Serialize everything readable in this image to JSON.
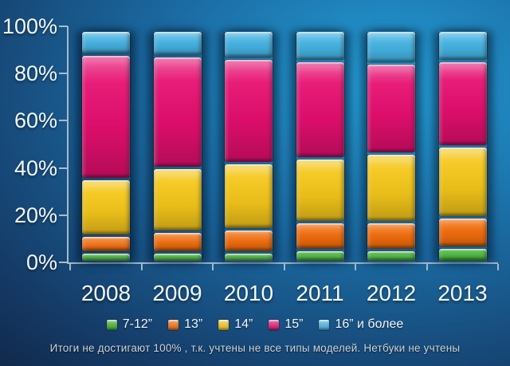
{
  "chart_data": {
    "type": "bar",
    "stacked": true,
    "title": "",
    "xlabel": "",
    "ylabel": "",
    "ylim": [
      0,
      100
    ],
    "grid": false,
    "legend_position": "bottom",
    "categories": [
      "2008",
      "2009",
      "2010",
      "2011",
      "2012",
      "2013"
    ],
    "y_ticks": [
      {
        "value": 0,
        "label": "0%"
      },
      {
        "value": 20,
        "label": "20%"
      },
      {
        "value": 40,
        "label": "40%"
      },
      {
        "value": 60,
        "label": "60%"
      },
      {
        "value": 80,
        "label": "80%"
      },
      {
        "value": 100,
        "label": "100%"
      }
    ],
    "series": [
      {
        "name": "7-12”",
        "color": "#3cb02c",
        "values": [
          4,
          4,
          4,
          5,
          5,
          6
        ]
      },
      {
        "name": "13”",
        "color": "#f26d0c",
        "values": [
          7,
          9,
          10,
          12,
          12,
          13
        ]
      },
      {
        "name": "14”",
        "color": "#f5c71a",
        "values": [
          24,
          27,
          28,
          27,
          29,
          30
        ]
      },
      {
        "name": "15”",
        "color": "#e60f70",
        "values": [
          53,
          47,
          44,
          41,
          38,
          36
        ]
      },
      {
        "name": "16” и более",
        "color": "#45b4e4",
        "values": [
          10,
          11,
          12,
          13,
          14,
          13
        ]
      }
    ]
  },
  "caption": "Итоги не достигают 100% , т.к. учтены не все типы моделей. Нетбуки не учтены",
  "colors": {
    "background_bright": "#259fd8",
    "background_mid": "#1b6ba3",
    "background_dark": "#153c68",
    "background_darker": "#112a4d",
    "axis": "#a6bccd",
    "text": "#f2f6fa"
  }
}
